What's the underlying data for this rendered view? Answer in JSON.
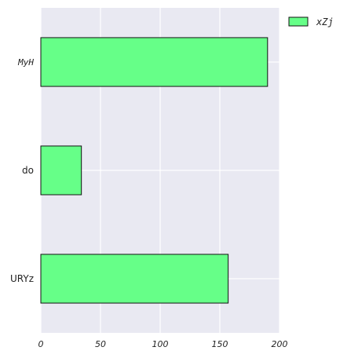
{
  "chart_data": {
    "type": "bar",
    "orientation": "horizontal",
    "categories": [
      "MyH",
      "do",
      "URYz"
    ],
    "series": [
      {
        "name": "xZj",
        "values": [
          190,
          34,
          157
        ]
      }
    ],
    "xlim": [
      0,
      200
    ],
    "xticks": [
      "0",
      "50",
      "100",
      "150",
      "200"
    ],
    "grid": true,
    "legend_position": "top-right, outside plot",
    "colors": {
      "bar_fill": "#66ff88",
      "bar_edge": "#111111",
      "plot_background": "#e9e9f2",
      "grid": "#ffffff"
    }
  }
}
